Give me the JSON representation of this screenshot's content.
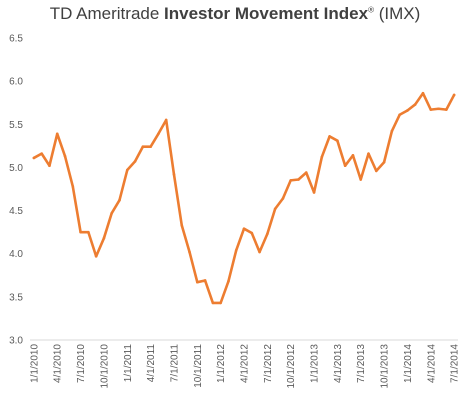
{
  "chart_data": {
    "type": "line",
    "title": {
      "prefix": "TD Ameritrade ",
      "bold": "Investor Movement Index",
      "mark": "®",
      "suffix": " (IMX)"
    },
    "xlabel": "",
    "ylabel": "",
    "ylim": [
      3.0,
      6.5
    ],
    "yticks": [
      "3.0",
      "3.5",
      "4.0",
      "4.5",
      "5.0",
      "5.5",
      "6.0",
      "6.5"
    ],
    "grid": false,
    "legend": "none",
    "line_color": "#ED7D31",
    "x": [
      "1/1/2010",
      "2/1/2010",
      "3/1/2010",
      "4/1/2010",
      "5/1/2010",
      "6/1/2010",
      "7/1/2010",
      "8/1/2010",
      "9/1/2010",
      "10/1/2010",
      "11/1/2010",
      "12/1/2010",
      "1/1/2011",
      "2/1/2011",
      "3/1/2011",
      "4/1/2011",
      "5/1/2011",
      "6/1/2011",
      "7/1/2011",
      "8/1/2011",
      "9/1/2011",
      "10/1/2011",
      "11/1/2011",
      "12/1/2011",
      "1/1/2012",
      "2/1/2012",
      "3/1/2012",
      "4/1/2012",
      "5/1/2012",
      "6/1/2012",
      "7/1/2012",
      "8/1/2012",
      "9/1/2012",
      "10/1/2012",
      "11/1/2012",
      "12/1/2012",
      "1/1/2013",
      "2/1/2013",
      "3/1/2013",
      "4/1/2013",
      "5/1/2013",
      "6/1/2013",
      "7/1/2013",
      "8/1/2013",
      "9/1/2013",
      "10/1/2013",
      "11/1/2013",
      "12/1/2013",
      "1/1/2014",
      "2/1/2014",
      "3/1/2014",
      "4/1/2014",
      "5/1/2014",
      "6/1/2014",
      "7/1/2014"
    ],
    "xtick_labels": [
      "1/1/2010",
      "4/1/2010",
      "7/1/2010",
      "10/1/2010",
      "1/1/2011",
      "4/1/2011",
      "7/1/2011",
      "10/1/2011",
      "1/1/2012",
      "4/1/2012",
      "7/1/2012",
      "10/1/2012",
      "1/1/2013",
      "4/1/2013",
      "7/1/2013",
      "10/1/2013",
      "1/1/2014",
      "4/1/2014",
      "7/1/2014"
    ],
    "series": [
      {
        "values": [
          5.11,
          5.16,
          5.02,
          5.39,
          5.13,
          4.78,
          4.25,
          4.25,
          3.97,
          4.18,
          4.47,
          4.62,
          4.97,
          5.07,
          5.24,
          5.24,
          5.39,
          5.55,
          4.92,
          4.33,
          4.02,
          3.67,
          3.69,
          3.43,
          3.43,
          3.68,
          4.04,
          4.29,
          4.24,
          4.02,
          4.23,
          4.52,
          4.64,
          4.85,
          4.86,
          4.94,
          4.71,
          5.12,
          5.36,
          5.31,
          5.02,
          5.14,
          4.86,
          5.16,
          4.96,
          5.06,
          5.42,
          5.61,
          5.66,
          5.73,
          5.86,
          5.67,
          5.68,
          5.67,
          5.84
        ]
      }
    ]
  }
}
